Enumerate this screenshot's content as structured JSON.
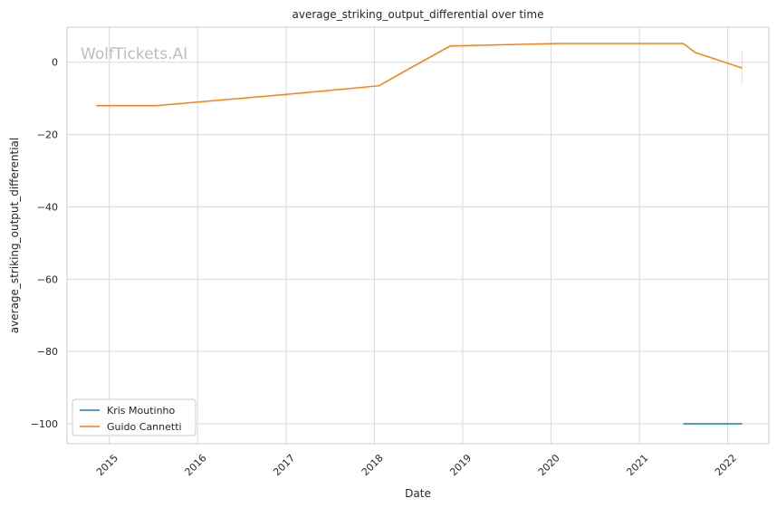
{
  "watermark": "WolfTickets.AI",
  "chart_data": {
    "type": "line",
    "title": "average_striking_output_differential over time",
    "xlabel": "Date",
    "ylabel": "average_striking_output_differential",
    "x_ticks": [
      "2015",
      "2016",
      "2017",
      "2018",
      "2019",
      "2020",
      "2021",
      "2022"
    ],
    "y_ticks": [
      0,
      -20,
      -40,
      -60,
      -80,
      -100
    ],
    "ylim": [
      -105.5,
      9.7
    ],
    "xlim": [
      "2014-07-10",
      "2022-06-20"
    ],
    "grid": true,
    "legend_position": "lower-left",
    "series": [
      {
        "name": "Kris Moutinho",
        "color": "#1f77b4",
        "points": [
          {
            "x": "2021-07-01",
            "y": -100
          },
          {
            "x": "2022-03-01",
            "y": -100
          }
        ]
      },
      {
        "name": "Guido Cannetti",
        "color": "#ff7f0e",
        "points": [
          {
            "x": "2014-11-08",
            "y": -12
          },
          {
            "x": "2015-07-15",
            "y": -12
          },
          {
            "x": "2017-01-01",
            "y": -8.9
          },
          {
            "x": "2018-01-20",
            "y": -6.5
          },
          {
            "x": "2018-06-01",
            "y": -1.5
          },
          {
            "x": "2018-11-10",
            "y": 4.5
          },
          {
            "x": "2020-02-01",
            "y": 5.2
          },
          {
            "x": "2021-07-01",
            "y": 5.2
          },
          {
            "x": "2021-08-20",
            "y": 2.7
          },
          {
            "x": "2022-03-01",
            "y": -1.6
          }
        ],
        "error_bar": {
          "x": "2022-03-01",
          "low": -6,
          "high": 3
        }
      }
    ]
  }
}
